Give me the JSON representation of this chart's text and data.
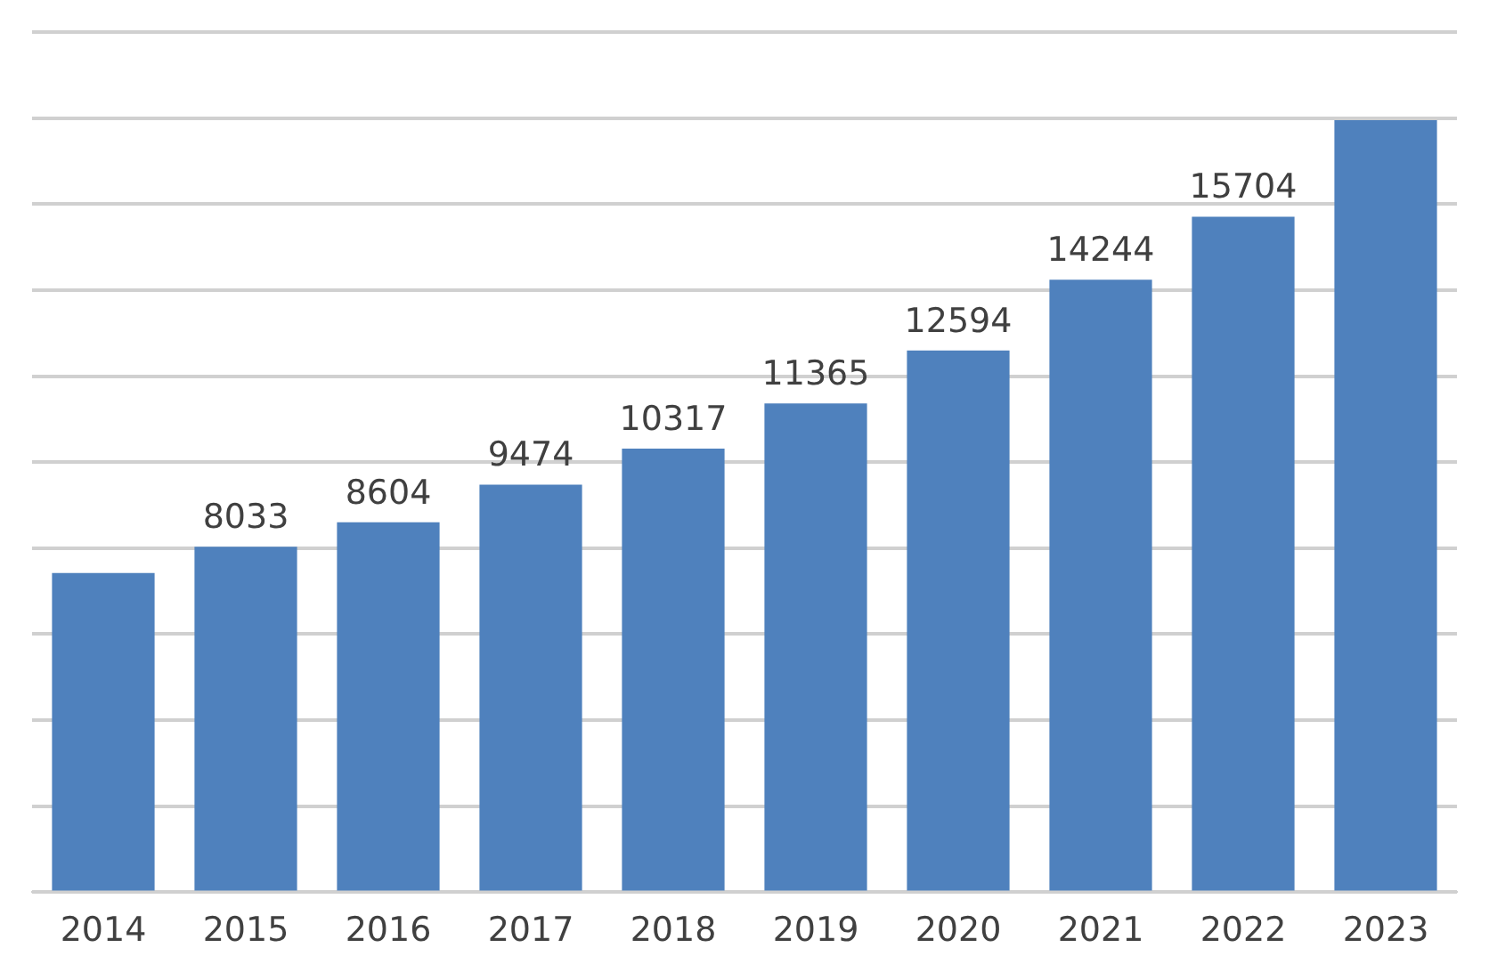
{
  "chart_data": {
    "type": "bar",
    "categories": [
      "2014",
      "2015",
      "2016",
      "2017",
      "2018",
      "2019",
      "2020",
      "2021",
      "2022",
      "2023"
    ],
    "values": [
      7420,
      8033,
      8604,
      9474,
      10317,
      11365,
      12594,
      14244,
      15704,
      17950
    ],
    "value_labels": [
      null,
      "8033",
      "8604",
      "9474",
      "10317",
      "11365",
      "12594",
      "14244",
      "15704",
      null
    ],
    "color": "#4f81bd",
    "ylim": [
      0,
      20000
    ],
    "yticks": [
      {
        "value": 0,
        "label": null
      },
      {
        "value": 2000,
        "label": null
      },
      {
        "value": 4000,
        "label": null
      },
      {
        "value": 6000,
        "label": null
      },
      {
        "value": 8000,
        "label": null
      },
      {
        "value": 10000,
        "label": null
      },
      {
        "value": 12000,
        "label": null
      },
      {
        "value": 14000,
        "label": null
      },
      {
        "value": 16000,
        "label": null
      },
      {
        "value": 18000,
        "label": null
      },
      {
        "value": 20000,
        "label": null
      }
    ],
    "grid": "y",
    "tick_labels": "x"
  }
}
